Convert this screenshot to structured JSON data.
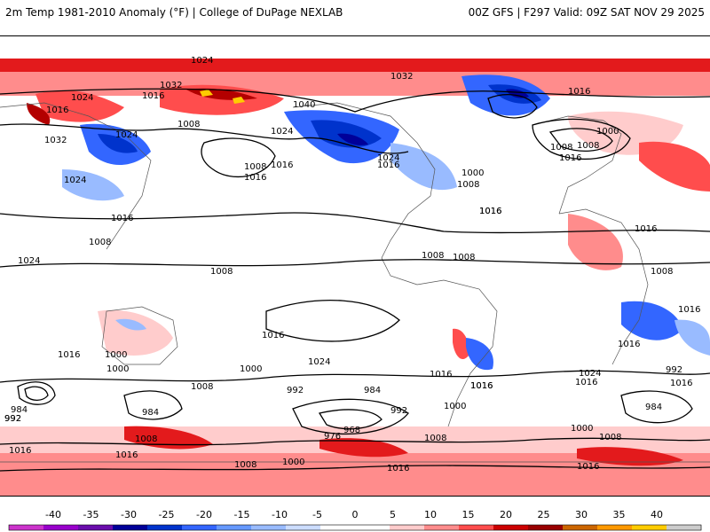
{
  "header": {
    "left_title": "2m Temp 1981-2010 Anomaly (°F) | College of DuPage NEXLAB",
    "right_title": "00Z GFS | F297 Valid: 09Z SAT NOV 29 2025"
  },
  "map": {
    "isobar_labels": [
      "1024",
      "1032",
      "1016",
      "1008",
      "1040",
      "1024",
      "1016",
      "1032",
      "1024",
      "1024",
      "1016",
      "1032",
      "1016",
      "1008",
      "1000",
      "1008",
      "1016",
      "1008",
      "1016",
      "1024",
      "1016",
      "1008",
      "1024",
      "1016",
      "1008",
      "1000",
      "1008",
      "1016",
      "1008",
      "1016",
      "1008",
      "1016",
      "1024",
      "1016",
      "992",
      "1000",
      "984",
      "992",
      "984",
      "976",
      "968",
      "992",
      "1016",
      "1000",
      "1008",
      "1016",
      "1016",
      "1008",
      "1016",
      "1024",
      "992",
      "1016",
      "1016",
      "984",
      "1000",
      "1008",
      "1016",
      "1000",
      "1016",
      "1008",
      "1024",
      "1008",
      "1016",
      "1000",
      "1016",
      "1016",
      "1000",
      "1008",
      "984",
      "992",
      "1016"
    ]
  },
  "colorbar": {
    "ticks": [
      "-40",
      "-35",
      "-30",
      "-25",
      "-20",
      "-15",
      "-10",
      "-5",
      "0",
      "5",
      "10",
      "15",
      "20",
      "25",
      "30",
      "35",
      "40"
    ],
    "colors": [
      "#cc33cc",
      "#9900cc",
      "#6a0dad",
      "#000099",
      "#0033cc",
      "#3366ff",
      "#6699ff",
      "#99bbff",
      "#ccddff",
      "#ffffff",
      "#ffffff",
      "#ffcccc",
      "#ff8c8c",
      "#ff4d4d",
      "#cc0000",
      "#990000",
      "#cc6600",
      "#ff9900",
      "#ffcc00",
      "#cccccc"
    ]
  }
}
